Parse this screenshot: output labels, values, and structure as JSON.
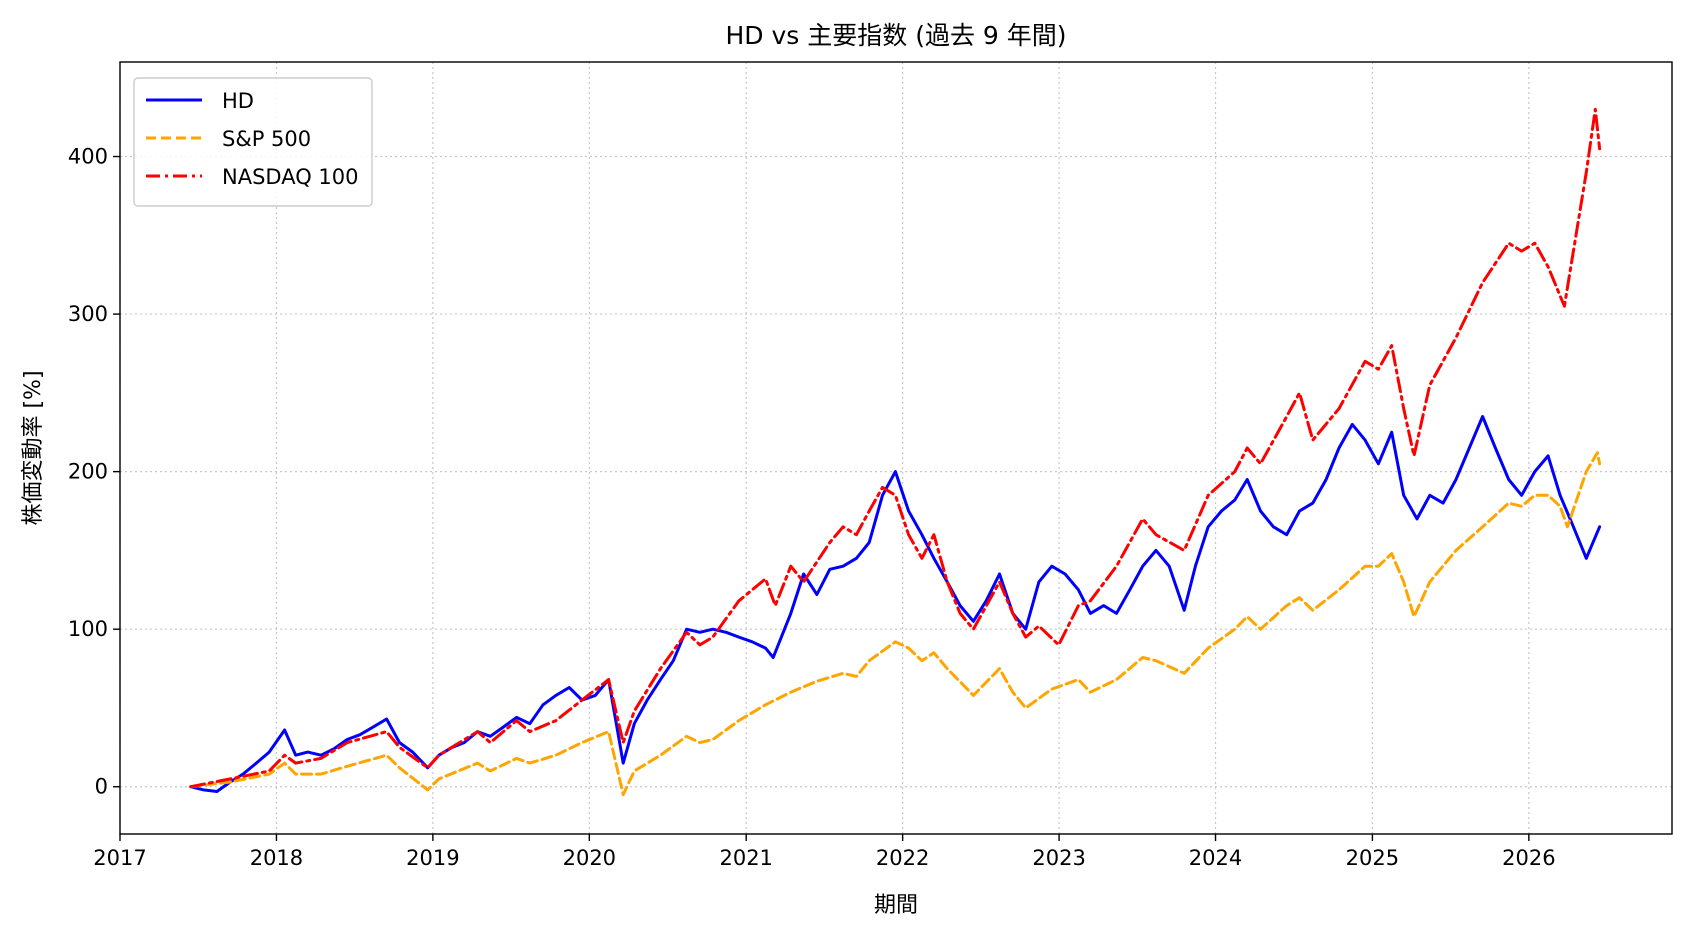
{
  "chart_data": {
    "type": "line",
    "title": "HD vs 主要指数 (過去 9 年間)",
    "xlabel": "期間",
    "ylabel": "株価変動率 [%]",
    "xlim": [
      "2017-01-01",
      "2026-12-01"
    ],
    "ylim": [
      -30,
      460
    ],
    "x_ticks": [
      "2017",
      "2018",
      "2019",
      "2020",
      "2021",
      "2022",
      "2023",
      "2024",
      "2025",
      "2026"
    ],
    "y_ticks": [
      0,
      100,
      200,
      300,
      400
    ],
    "grid": true,
    "legend_position": "top-left",
    "series": [
      {
        "name": "HD",
        "color": "#0000ff",
        "style": "solid",
        "points": [
          [
            "2017-06-15",
            0
          ],
          [
            "2017-07-15",
            -2
          ],
          [
            "2017-08-15",
            -3
          ],
          [
            "2017-09-15",
            3
          ],
          [
            "2017-10-15",
            8
          ],
          [
            "2017-11-15",
            15
          ],
          [
            "2017-12-15",
            22
          ],
          [
            "2018-01-20",
            36
          ],
          [
            "2018-02-15",
            20
          ],
          [
            "2018-03-15",
            22
          ],
          [
            "2018-04-15",
            20
          ],
          [
            "2018-05-15",
            24
          ],
          [
            "2018-06-15",
            30
          ],
          [
            "2018-07-15",
            33
          ],
          [
            "2018-08-15",
            38
          ],
          [
            "2018-09-15",
            43
          ],
          [
            "2018-10-15",
            28
          ],
          [
            "2018-11-15",
            22
          ],
          [
            "2018-12-20",
            12
          ],
          [
            "2019-01-15",
            20
          ],
          [
            "2019-02-15",
            25
          ],
          [
            "2019-03-15",
            28
          ],
          [
            "2019-04-15",
            35
          ],
          [
            "2019-05-15",
            32
          ],
          [
            "2019-06-15",
            38
          ],
          [
            "2019-07-15",
            44
          ],
          [
            "2019-08-15",
            40
          ],
          [
            "2019-09-15",
            52
          ],
          [
            "2019-10-15",
            58
          ],
          [
            "2019-11-15",
            63
          ],
          [
            "2019-12-15",
            55
          ],
          [
            "2020-01-15",
            58
          ],
          [
            "2020-02-15",
            68
          ],
          [
            "2020-03-20",
            15
          ],
          [
            "2020-04-15",
            40
          ],
          [
            "2020-05-15",
            55
          ],
          [
            "2020-06-15",
            68
          ],
          [
            "2020-07-15",
            80
          ],
          [
            "2020-08-15",
            100
          ],
          [
            "2020-09-15",
            98
          ],
          [
            "2020-10-15",
            100
          ],
          [
            "2020-11-15",
            98
          ],
          [
            "2020-12-15",
            95
          ],
          [
            "2021-01-15",
            92
          ],
          [
            "2021-02-15",
            88
          ],
          [
            "2021-03-05",
            82
          ],
          [
            "2021-04-15",
            110
          ],
          [
            "2021-05-15",
            135
          ],
          [
            "2021-06-15",
            122
          ],
          [
            "2021-07-15",
            138
          ],
          [
            "2021-08-15",
            140
          ],
          [
            "2021-09-15",
            145
          ],
          [
            "2021-10-15",
            155
          ],
          [
            "2021-11-15",
            185
          ],
          [
            "2021-12-15",
            200
          ],
          [
            "2022-01-15",
            175
          ],
          [
            "2022-02-15",
            160
          ],
          [
            "2022-03-15",
            145
          ],
          [
            "2022-04-15",
            130
          ],
          [
            "2022-05-15",
            115
          ],
          [
            "2022-06-15",
            105
          ],
          [
            "2022-07-15",
            118
          ],
          [
            "2022-08-15",
            135
          ],
          [
            "2022-09-15",
            110
          ],
          [
            "2022-10-15",
            100
          ],
          [
            "2022-11-15",
            130
          ],
          [
            "2022-12-15",
            140
          ],
          [
            "2023-01-15",
            135
          ],
          [
            "2023-02-15",
            125
          ],
          [
            "2023-03-15",
            110
          ],
          [
            "2023-04-15",
            115
          ],
          [
            "2023-05-15",
            110
          ],
          [
            "2023-06-15",
            125
          ],
          [
            "2023-07-15",
            140
          ],
          [
            "2023-08-15",
            150
          ],
          [
            "2023-09-15",
            140
          ],
          [
            "2023-10-20",
            112
          ],
          [
            "2023-11-15",
            140
          ],
          [
            "2023-12-15",
            165
          ],
          [
            "2024-01-15",
            175
          ],
          [
            "2024-02-15",
            182
          ],
          [
            "2024-03-15",
            195
          ],
          [
            "2024-04-15",
            175
          ],
          [
            "2024-05-15",
            165
          ],
          [
            "2024-06-15",
            160
          ],
          [
            "2024-07-15",
            175
          ],
          [
            "2024-08-15",
            180
          ],
          [
            "2024-09-15",
            195
          ],
          [
            "2024-10-15",
            215
          ],
          [
            "2024-11-15",
            230
          ],
          [
            "2024-12-15",
            220
          ],
          [
            "2025-01-15",
            205
          ],
          [
            "2025-02-15",
            225
          ],
          [
            "2025-03-15",
            185
          ],
          [
            "2025-04-15",
            170
          ],
          [
            "2025-05-15",
            185
          ],
          [
            "2025-06-15",
            180
          ],
          [
            "2025-07-15",
            195
          ],
          [
            "2025-08-15",
            215
          ],
          [
            "2025-09-15",
            235
          ],
          [
            "2025-10-15",
            215
          ],
          [
            "2025-11-15",
            195
          ],
          [
            "2025-12-15",
            185
          ],
          [
            "2026-01-15",
            200
          ],
          [
            "2026-02-15",
            210
          ],
          [
            "2026-03-15",
            185
          ],
          [
            "2026-04-15",
            165
          ],
          [
            "2026-05-15",
            145
          ],
          [
            "2026-06-15",
            165
          ]
        ]
      },
      {
        "name": "S&P 500",
        "color": "#ffa500",
        "style": "dashed",
        "points": [
          [
            "2017-06-15",
            0
          ],
          [
            "2017-09-15",
            3
          ],
          [
            "2017-12-15",
            8
          ],
          [
            "2018-01-20",
            15
          ],
          [
            "2018-02-15",
            8
          ],
          [
            "2018-04-15",
            8
          ],
          [
            "2018-06-15",
            13
          ],
          [
            "2018-09-15",
            20
          ],
          [
            "2018-10-15",
            12
          ],
          [
            "2018-12-20",
            -2
          ],
          [
            "2019-01-15",
            5
          ],
          [
            "2019-04-15",
            15
          ],
          [
            "2019-05-15",
            10
          ],
          [
            "2019-07-15",
            18
          ],
          [
            "2019-08-15",
            15
          ],
          [
            "2019-10-15",
            20
          ],
          [
            "2019-12-15",
            28
          ],
          [
            "2020-02-15",
            35
          ],
          [
            "2020-03-20",
            -5
          ],
          [
            "2020-04-15",
            10
          ],
          [
            "2020-06-15",
            20
          ],
          [
            "2020-08-15",
            32
          ],
          [
            "2020-09-15",
            28
          ],
          [
            "2020-10-15",
            30
          ],
          [
            "2020-12-15",
            42
          ],
          [
            "2021-02-15",
            52
          ],
          [
            "2021-04-15",
            60
          ],
          [
            "2021-06-15",
            67
          ],
          [
            "2021-08-15",
            72
          ],
          [
            "2021-09-15",
            70
          ],
          [
            "2021-10-15",
            80
          ],
          [
            "2021-12-15",
            92
          ],
          [
            "2022-01-15",
            88
          ],
          [
            "2022-02-15",
            80
          ],
          [
            "2022-03-15",
            85
          ],
          [
            "2022-04-15",
            75
          ],
          [
            "2022-06-15",
            58
          ],
          [
            "2022-08-15",
            75
          ],
          [
            "2022-09-15",
            60
          ],
          [
            "2022-10-15",
            50
          ],
          [
            "2022-12-15",
            62
          ],
          [
            "2023-02-15",
            68
          ],
          [
            "2023-03-15",
            60
          ],
          [
            "2023-05-15",
            68
          ],
          [
            "2023-07-15",
            82
          ],
          [
            "2023-08-15",
            80
          ],
          [
            "2023-10-20",
            72
          ],
          [
            "2023-12-15",
            88
          ],
          [
            "2024-02-15",
            100
          ],
          [
            "2024-03-15",
            108
          ],
          [
            "2024-04-15",
            100
          ],
          [
            "2024-06-15",
            115
          ],
          [
            "2024-07-15",
            120
          ],
          [
            "2024-08-15",
            112
          ],
          [
            "2024-10-15",
            125
          ],
          [
            "2024-12-15",
            140
          ],
          [
            "2025-01-15",
            140
          ],
          [
            "2025-02-15",
            148
          ],
          [
            "2025-03-15",
            130
          ],
          [
            "2025-04-08",
            108
          ],
          [
            "2025-05-15",
            130
          ],
          [
            "2025-07-15",
            150
          ],
          [
            "2025-09-15",
            165
          ],
          [
            "2025-11-15",
            180
          ],
          [
            "2025-12-15",
            178
          ],
          [
            "2026-01-15",
            185
          ],
          [
            "2026-02-15",
            185
          ],
          [
            "2026-03-15",
            178
          ],
          [
            "2026-04-01",
            165
          ],
          [
            "2026-05-15",
            200
          ],
          [
            "2026-06-10",
            212
          ],
          [
            "2026-06-15",
            205
          ]
        ]
      },
      {
        "name": "NASDAQ 100",
        "color": "#ff0000",
        "style": "dashdot",
        "points": [
          [
            "2017-06-15",
            0
          ],
          [
            "2017-09-15",
            5
          ],
          [
            "2017-12-15",
            10
          ],
          [
            "2018-01-20",
            20
          ],
          [
            "2018-02-15",
            15
          ],
          [
            "2018-04-15",
            18
          ],
          [
            "2018-06-15",
            28
          ],
          [
            "2018-09-15",
            35
          ],
          [
            "2018-10-15",
            25
          ],
          [
            "2018-12-20",
            12
          ],
          [
            "2019-01-15",
            20
          ],
          [
            "2019-04-15",
            35
          ],
          [
            "2019-05-15",
            28
          ],
          [
            "2019-07-15",
            42
          ],
          [
            "2019-08-15",
            35
          ],
          [
            "2019-10-15",
            42
          ],
          [
            "2019-12-15",
            55
          ],
          [
            "2020-02-15",
            68
          ],
          [
            "2020-03-20",
            28
          ],
          [
            "2020-04-15",
            48
          ],
          [
            "2020-06-15",
            75
          ],
          [
            "2020-08-15",
            98
          ],
          [
            "2020-09-15",
            90
          ],
          [
            "2020-10-15",
            95
          ],
          [
            "2020-12-15",
            118
          ],
          [
            "2021-02-15",
            132
          ],
          [
            "2021-03-10",
            115
          ],
          [
            "2021-04-15",
            140
          ],
          [
            "2021-05-15",
            130
          ],
          [
            "2021-07-15",
            155
          ],
          [
            "2021-08-15",
            165
          ],
          [
            "2021-09-15",
            160
          ],
          [
            "2021-10-15",
            175
          ],
          [
            "2021-11-15",
            190
          ],
          [
            "2021-12-15",
            185
          ],
          [
            "2022-01-15",
            160
          ],
          [
            "2022-02-15",
            145
          ],
          [
            "2022-03-15",
            160
          ],
          [
            "2022-04-15",
            130
          ],
          [
            "2022-05-15",
            110
          ],
          [
            "2022-06-15",
            100
          ],
          [
            "2022-08-15",
            130
          ],
          [
            "2022-09-15",
            110
          ],
          [
            "2022-10-15",
            95
          ],
          [
            "2022-11-15",
            102
          ],
          [
            "2022-12-31",
            90
          ],
          [
            "2023-02-15",
            115
          ],
          [
            "2023-03-15",
            118
          ],
          [
            "2023-05-15",
            140
          ],
          [
            "2023-07-15",
            170
          ],
          [
            "2023-08-15",
            160
          ],
          [
            "2023-10-20",
            150
          ],
          [
            "2023-12-15",
            185
          ],
          [
            "2024-02-15",
            200
          ],
          [
            "2024-03-15",
            215
          ],
          [
            "2024-04-15",
            205
          ],
          [
            "2024-06-15",
            235
          ],
          [
            "2024-07-15",
            250
          ],
          [
            "2024-08-15",
            220
          ],
          [
            "2024-10-15",
            240
          ],
          [
            "2024-12-15",
            270
          ],
          [
            "2025-01-15",
            265
          ],
          [
            "2025-02-15",
            280
          ],
          [
            "2025-03-15",
            240
          ],
          [
            "2025-04-08",
            210
          ],
          [
            "2025-05-15",
            255
          ],
          [
            "2025-07-15",
            285
          ],
          [
            "2025-09-15",
            320
          ],
          [
            "2025-11-15",
            345
          ],
          [
            "2025-12-15",
            340
          ],
          [
            "2026-01-15",
            345
          ],
          [
            "2026-02-15",
            330
          ],
          [
            "2026-03-25",
            305
          ],
          [
            "2026-04-15",
            340
          ],
          [
            "2026-05-15",
            390
          ],
          [
            "2026-06-05",
            430
          ],
          [
            "2026-06-15",
            405
          ]
        ]
      }
    ]
  }
}
